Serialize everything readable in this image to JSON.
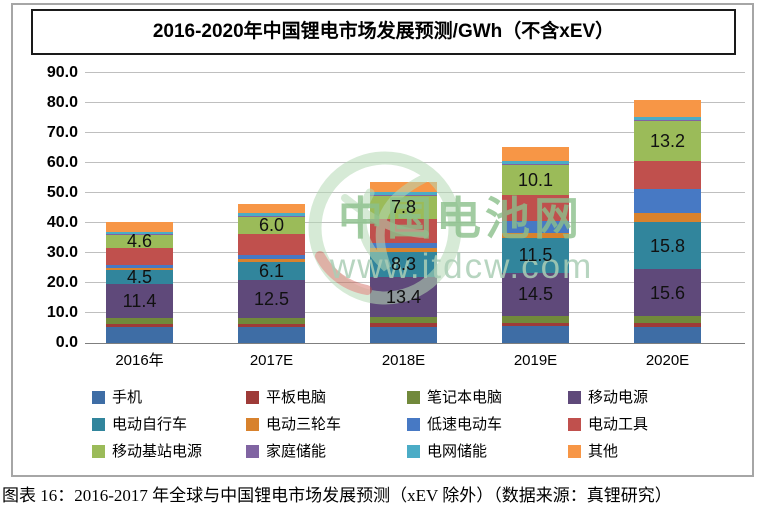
{
  "header": {
    "title": "2016-2020年中国锂电市场发展预测/GWh（不含xEV）"
  },
  "caption": {
    "text": "图表 16：2016-2017 年全球与中国锂电市场发展预测（xEV 除外）（数据来源：真锂研究）"
  },
  "watermark": {
    "name": "中国电池网",
    "url": "www.itdcw.com",
    "green": "#8cc08c",
    "light_green": "#b5d9b5",
    "red": "#c94f43"
  },
  "chart_data": {
    "type": "bar",
    "stacked": true,
    "title": "2016-2020年中国锂电市场发展预测/GWh（不含xEV）",
    "categories": [
      "2016年",
      "2017E",
      "2018E",
      "2019E",
      "2020E"
    ],
    "series": [
      {
        "name": "手机",
        "color": "#3e6da5",
        "values": [
          5.3,
          5.4,
          5.5,
          5.6,
          5.5
        ],
        "labeled": false
      },
      {
        "name": "平板电脑",
        "color": "#9e3b38",
        "values": [
          1.1,
          1.1,
          1.1,
          1.2,
          1.2
        ],
        "labeled": false
      },
      {
        "name": "笔记本电脑",
        "color": "#71893b",
        "values": [
          1.9,
          2.0,
          2.1,
          2.2,
          2.3
        ],
        "labeled": false
      },
      {
        "name": "移动电源",
        "color": "#5f497a",
        "values": [
          11.4,
          12.5,
          13.4,
          14.5,
          15.6
        ],
        "labeled": true
      },
      {
        "name": "电动自行车",
        "color": "#31859c",
        "values": [
          4.5,
          6.1,
          8.3,
          11.5,
          15.8
        ],
        "labeled": true
      },
      {
        "name": "电动三轮车",
        "color": "#d8822d",
        "values": [
          0.9,
          1.0,
          1.3,
          1.8,
          2.8
        ],
        "labeled": false
      },
      {
        "name": "低速电动车",
        "color": "#4779c4",
        "values": [
          0.8,
          1.1,
          1.8,
          4.0,
          8.1
        ],
        "labeled": false
      },
      {
        "name": "电动工具",
        "color": "#c0504d",
        "values": [
          5.8,
          7.0,
          7.8,
          8.5,
          9.5
        ],
        "labeled": false
      },
      {
        "name": "移动基站电源",
        "color": "#9bbb59",
        "values": [
          4.6,
          6.0,
          7.8,
          10.1,
          13.2
        ],
        "labeled": true
      },
      {
        "name": "家庭储能",
        "color": "#8064a2",
        "values": [
          0.1,
          0.2,
          0.2,
          0.3,
          0.4
        ],
        "labeled": false
      },
      {
        "name": "电网储能",
        "color": "#4bacc6",
        "values": [
          0.7,
          0.8,
          0.9,
          0.9,
          1.0
        ],
        "labeled": false
      },
      {
        "name": "其他",
        "color": "#f79646",
        "values": [
          3.1,
          3.3,
          3.6,
          4.6,
          5.5
        ],
        "labeled": false
      }
    ],
    "ylim": [
      0,
      90
    ],
    "ytick_step": 10,
    "yticks": [
      "0.0",
      "10.0",
      "20.0",
      "30.0",
      "40.0",
      "50.0",
      "60.0",
      "70.0",
      "80.0",
      "90.0"
    ],
    "ylabel": "",
    "xlabel": "",
    "grid": true,
    "legend_position": "bottom",
    "legend_columns": 4
  }
}
